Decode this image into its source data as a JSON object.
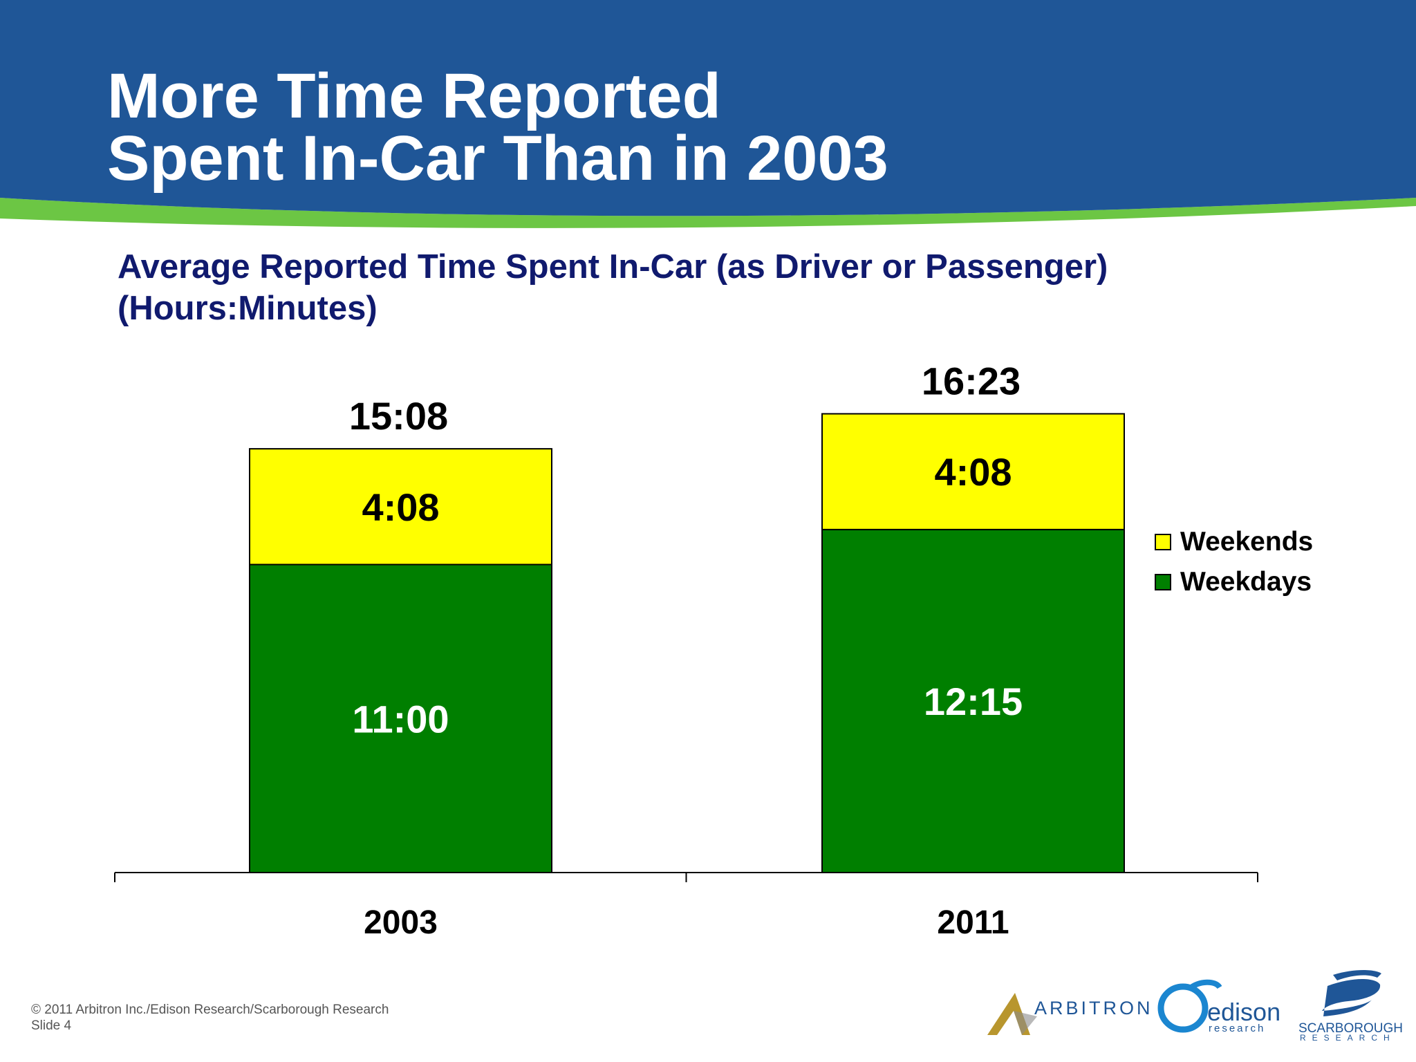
{
  "slide": {
    "title_lines": [
      "More Time Reported",
      "Spent In-Car Than in 2003"
    ],
    "colors": {
      "header_blue": "#1f5697",
      "accent_green": "#6cc644",
      "subtitle_navy": "#101a6e"
    }
  },
  "chart_data": {
    "type": "bar",
    "stacked": true,
    "title_lines": [
      "Average Reported Time Spent In-Car (as Driver or Passenger)",
      "(Hours:Minutes)"
    ],
    "categories": [
      "2003",
      "2011"
    ],
    "series": [
      {
        "name": "Weekdays",
        "values": [
          11.0,
          12.25
        ],
        "labels": [
          "11:00",
          "12:15"
        ],
        "color": "#007f00"
      },
      {
        "name": "Weekends",
        "values": [
          4.133,
          4.133
        ],
        "labels": [
          "4:08",
          "4:08"
        ],
        "color": "#ffff00"
      }
    ],
    "totals": {
      "values": [
        15.133,
        16.383
      ],
      "labels": [
        "15:08",
        "16:23"
      ]
    },
    "ylim": [
      0,
      20
    ],
    "grid": false,
    "legend": {
      "position": "right",
      "order": [
        "Weekends",
        "Weekdays"
      ]
    }
  },
  "footer": {
    "lines": [
      "© 2011 Arbitron Inc./Edison Research/Scarborough Research",
      "Slide 4"
    ]
  },
  "logos": [
    {
      "icon": "arbitron-logo-icon",
      "text": "ARBITRON"
    },
    {
      "icon": "edison-logo-icon",
      "text": "edison",
      "subtext": "research"
    },
    {
      "icon": "scarborough-logo-icon",
      "text": "SCARBOROUGH",
      "subtext": "RESEARCH"
    }
  ]
}
